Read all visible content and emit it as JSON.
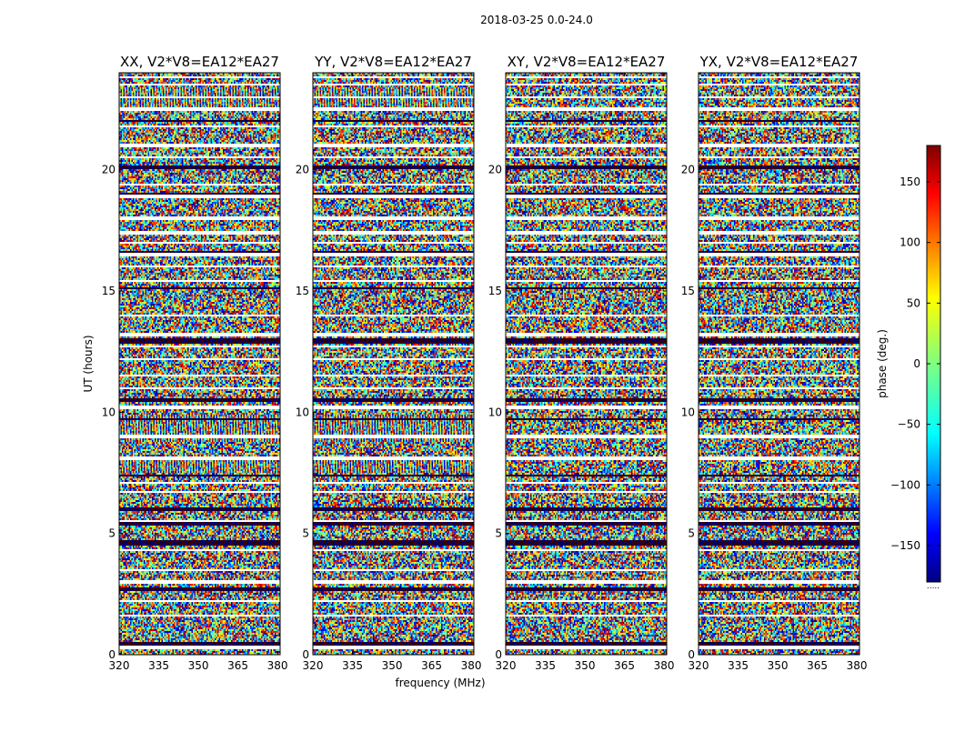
{
  "figure": {
    "suptitle": "2018-03-25 0.0-24.0",
    "ylabel": "UT (hours)",
    "xlabel": "frequency (MHz)",
    "colorbar_label": "phase (deg.)",
    "colorbar_note": "....."
  },
  "chart_data": [
    {
      "type": "heatmap",
      "title": "XX, V2*V8=EA12*EA27",
      "polarization": "XX",
      "xlim": [
        320,
        381
      ],
      "ylim": [
        0,
        24
      ],
      "xticks": [
        320,
        335,
        350,
        365,
        380
      ],
      "yticks": [
        0,
        5,
        10,
        15,
        20
      ],
      "blank_rows_hours": [
        0.3,
        1.6,
        2.2,
        3.0,
        3.5,
        4.3,
        5.5,
        6.7,
        7.1,
        8.1,
        9.0,
        10.2,
        11.0,
        11.5,
        12.2,
        12.7,
        13.2,
        14.0,
        15.4,
        16.0,
        16.5,
        17.0,
        17.4,
        18.0,
        18.9,
        19.4,
        20.5,
        21.0,
        21.8,
        22.5,
        23.0,
        23.5,
        23.8
      ],
      "dark_rows_hours": [
        0.45,
        2.7,
        4.55,
        4.65,
        5.4,
        6.0,
        7.4,
        9.7,
        10.5,
        12.9,
        13.0,
        15.1,
        16.6,
        19.0,
        20.1,
        22.0
      ],
      "coherent_bands_hours": [
        [
          7.5,
          8.2
        ],
        [
          8.8,
          9.9
        ],
        [
          22.6,
          23.4
        ]
      ]
    },
    {
      "type": "heatmap",
      "title": "YY, V2*V8=EA12*EA27",
      "polarization": "YY",
      "xlim": [
        320,
        381
      ],
      "ylim": [
        0,
        24
      ],
      "xticks": [
        320,
        335,
        350,
        365,
        380
      ],
      "yticks": [
        0,
        5,
        10,
        15,
        20
      ],
      "blank_rows_hours": [
        0.3,
        1.6,
        2.2,
        3.0,
        3.5,
        4.3,
        5.5,
        6.7,
        7.1,
        8.1,
        9.0,
        10.2,
        11.0,
        11.5,
        12.2,
        12.7,
        13.2,
        14.0,
        15.4,
        16.0,
        16.5,
        17.0,
        17.4,
        18.0,
        18.9,
        19.4,
        20.5,
        21.0,
        21.8,
        22.5,
        23.0,
        23.5,
        23.8
      ],
      "dark_rows_hours": [
        0.45,
        2.7,
        4.55,
        4.65,
        5.4,
        6.0,
        7.4,
        9.7,
        10.5,
        12.9,
        13.0,
        15.1,
        16.6,
        19.0,
        20.1,
        22.0
      ],
      "coherent_bands_hours": [
        [
          7.5,
          8.2
        ],
        [
          8.8,
          9.9
        ],
        [
          22.6,
          23.4
        ]
      ]
    },
    {
      "type": "heatmap",
      "title": "XY, V2*V8=EA12*EA27",
      "polarization": "XY",
      "xlim": [
        320,
        381
      ],
      "ylim": [
        0,
        24
      ],
      "xticks": [
        320,
        335,
        350,
        365,
        380
      ],
      "yticks": [
        0,
        5,
        10,
        15,
        20
      ],
      "blank_rows_hours": [
        0.3,
        1.6,
        2.2,
        3.0,
        3.5,
        4.3,
        5.5,
        6.7,
        7.1,
        8.1,
        9.0,
        10.2,
        11.0,
        11.5,
        12.2,
        12.7,
        13.2,
        14.0,
        15.4,
        16.0,
        16.5,
        17.0,
        17.4,
        18.0,
        18.9,
        19.4,
        20.5,
        21.0,
        21.8,
        22.5,
        23.0,
        23.5,
        23.8
      ],
      "dark_rows_hours": [
        0.45,
        2.7,
        4.55,
        4.65,
        5.4,
        6.0,
        7.4,
        9.7,
        10.5,
        12.9,
        13.0,
        15.1,
        16.6,
        19.0,
        20.1,
        22.0
      ],
      "coherent_bands_hours": []
    },
    {
      "type": "heatmap",
      "title": "YX, V2*V8=EA12*EA27",
      "polarization": "YX",
      "xlim": [
        320,
        381
      ],
      "ylim": [
        0,
        24
      ],
      "xticks": [
        320,
        335,
        350,
        365,
        380
      ],
      "yticks": [
        0,
        5,
        10,
        15,
        20
      ],
      "blank_rows_hours": [
        0.3,
        1.6,
        2.2,
        3.0,
        3.5,
        4.3,
        5.5,
        6.7,
        7.1,
        8.1,
        9.0,
        10.2,
        11.0,
        11.5,
        12.2,
        12.7,
        13.2,
        14.0,
        15.4,
        16.0,
        16.5,
        17.0,
        17.4,
        18.0,
        18.9,
        19.4,
        20.5,
        21.0,
        21.8,
        22.5,
        23.0,
        23.5,
        23.8
      ],
      "dark_rows_hours": [
        0.45,
        2.7,
        4.55,
        4.65,
        5.4,
        6.0,
        7.4,
        9.7,
        10.5,
        12.9,
        13.0,
        15.1,
        16.6,
        19.0,
        20.1,
        22.0
      ],
      "coherent_bands_hours": []
    }
  ],
  "colorbar": {
    "range": [
      -180,
      180
    ],
    "ticks": [
      -150,
      -100,
      -50,
      0,
      50,
      100,
      150
    ],
    "tick_labels": [
      "−150",
      "−100",
      "−50",
      "0",
      "50",
      "100",
      "150"
    ],
    "colormap": "jet"
  }
}
